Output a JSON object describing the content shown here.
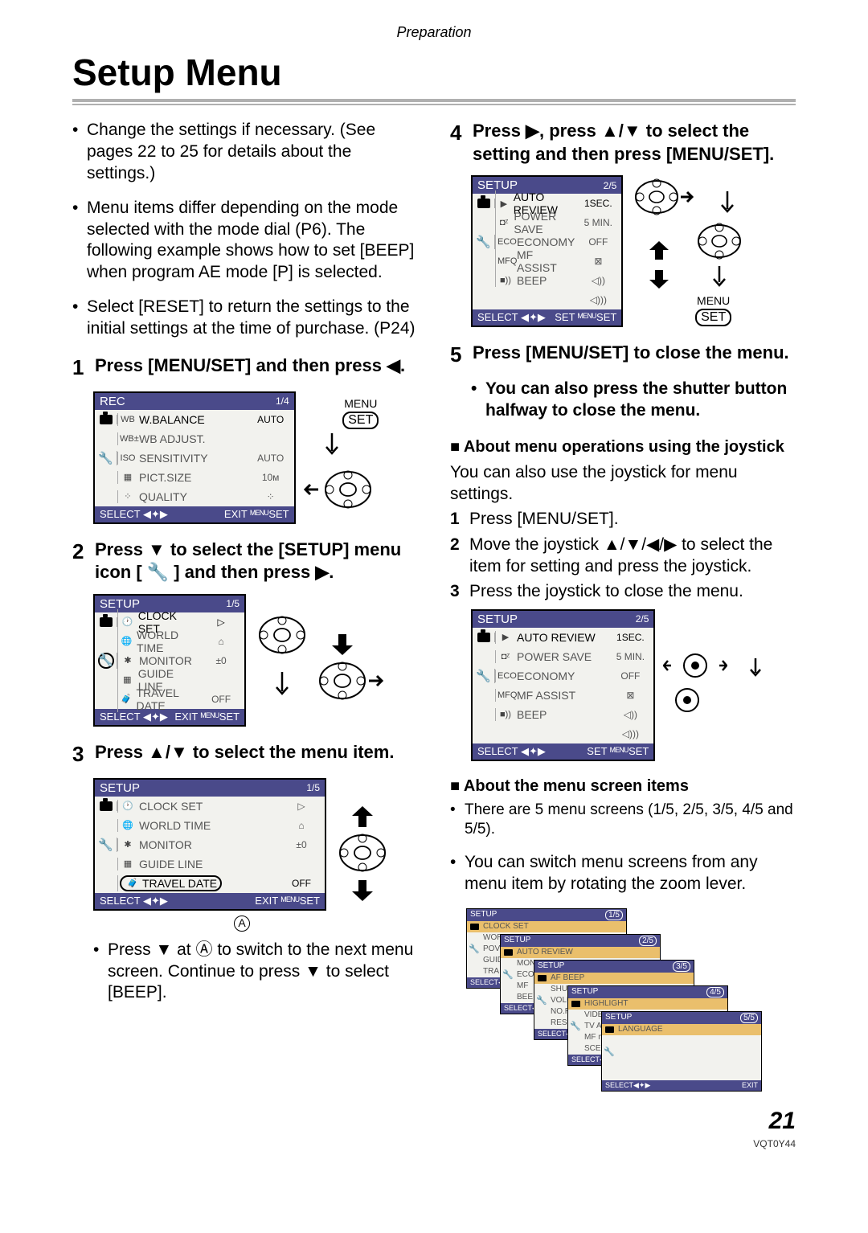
{
  "header": {
    "breadcrumb": "Preparation",
    "title": "Setup Menu"
  },
  "intro_bullets": [
    "Change the settings if necessary. (See pages 22 to 25 for details about the settings.)",
    "Menu items differ depending on the mode selected with the mode dial (P6).\nThe following example shows how to set [BEEP] when program AE mode [P] is selected.",
    "Select [RESET] to return the settings to the initial settings at the time of purchase. (P24)"
  ],
  "step1": {
    "num": "1",
    "text": "Press [MENU/SET] and then press ◀."
  },
  "step2": {
    "num": "2",
    "text": "Press ▼ to select the [SETUP] menu icon [ 🔧 ] and then press ▶."
  },
  "step3": {
    "num": "3",
    "text": "Press ▲/▼ to select the menu item."
  },
  "step3_note": "Press ▼ at Ⓐ to switch to the next menu screen. Continue to press ▼ to select [BEEP].",
  "step4": {
    "num": "4",
    "text": "Press ▶, press ▲/▼ to select the setting and then press [MENU/SET]."
  },
  "step5": {
    "num": "5",
    "text": "Press [MENU/SET] to close the menu."
  },
  "step5_sub": "You can also press the shutter button halfway to close the menu.",
  "joystick_heading": "About menu operations using the joystick",
  "joystick_intro": "You can also use the joystick for menu settings.",
  "joystick_steps": [
    "Press [MENU/SET].",
    "Move the joystick ▲/▼/◀/▶ to select the item for setting and press the joystick.",
    "Press the joystick to close the menu."
  ],
  "menuscreens_heading": "About the menu screen items",
  "menuscreens_bullets": [
    "There are 5 menu screens (1/5, 2/5, 3/5, 4/5 and 5/5).",
    "You can switch menu screens from any menu item by rotating the zoom lever."
  ],
  "menu_label": "MENU",
  "set_label": "SET",
  "screen_rec": {
    "title": "REC",
    "page": "1/4",
    "rows": [
      {
        "ico": "WB",
        "label": "W.BALANCE",
        "val": "AUTO",
        "hl": true
      },
      {
        "ico": "WB±",
        "label": "WB ADJUST.",
        "val": ""
      },
      {
        "ico": "ISO",
        "label": "SENSITIVITY",
        "val": "AUTO"
      },
      {
        "ico": "▦",
        "label": "PICT.SIZE",
        "val": "10ᴍ"
      },
      {
        "ico": "⁘",
        "label": "QUALITY",
        "val": "⁘"
      }
    ],
    "footer_l": "SELECT ◀✦▶",
    "footer_r": "EXIT ᴹᴱᴺᵁSET"
  },
  "screen_setup1": {
    "title": "SETUP",
    "page": "1/5",
    "rows": [
      {
        "ico": "🕐",
        "label": "CLOCK SET",
        "val": "▷",
        "hl": true
      },
      {
        "ico": "🌐",
        "label": "WORLD TIME",
        "val": "⌂"
      },
      {
        "ico": "✱",
        "label": "MONITOR",
        "val": "±0"
      },
      {
        "ico": "▦",
        "label": "GUIDE LINE",
        "val": ""
      },
      {
        "ico": "🧳",
        "label": "TRAVEL DATE",
        "val": "OFF"
      }
    ],
    "footer_l": "SELECT ◀✦▶",
    "footer_r": "EXIT ᴹᴱᴺᵁSET"
  },
  "screen_setup1_hl5": {
    "title": "SETUP",
    "page": "1/5",
    "rows": [
      {
        "ico": "🕐",
        "label": "CLOCK SET",
        "val": "▷"
      },
      {
        "ico": "🌐",
        "label": "WORLD TIME",
        "val": "⌂"
      },
      {
        "ico": "✱",
        "label": "MONITOR",
        "val": "±0"
      },
      {
        "ico": "▦",
        "label": "GUIDE LINE",
        "val": ""
      },
      {
        "ico": "🧳",
        "label": "TRAVEL DATE",
        "val": "OFF",
        "hl": true
      }
    ],
    "footer_l": "SELECT ◀✦▶",
    "footer_r": "EXIT ᴹᴱᴺᵁSET"
  },
  "screen_setup2": {
    "title": "SETUP",
    "page": "2/5",
    "rows": [
      {
        "ico": "▶",
        "label": "AUTO REVIEW",
        "val": "1SEC.",
        "hl": true
      },
      {
        "ico": "◘ᶻ",
        "label": "POWER SAVE",
        "val": "5 MIN."
      },
      {
        "ico": "ECO",
        "label": "ECONOMY",
        "val": "OFF"
      },
      {
        "ico": "MFQ",
        "label": "MF ASSIST",
        "val": "⊠"
      },
      {
        "ico": "■))",
        "label": "BEEP",
        "val": "◁))"
      }
    ],
    "extra_row": {
      "val": "◁)))"
    },
    "footer_l": "SELECT ◀✦▶",
    "footer_m": "SET ᴹᴱᴺᵁSET"
  },
  "cascade": [
    {
      "title": "SETUP",
      "page": "1/5",
      "rows": [
        "CLOCK SET",
        "WOR",
        "POV",
        "GUID",
        "TRA"
      ]
    },
    {
      "title": "SETUP",
      "page": "2/5",
      "rows": [
        "AUTO REVIEW",
        "MON",
        "ECO",
        "MF",
        "BEE"
      ]
    },
    {
      "title": "SETUP",
      "page": "3/5",
      "rows": [
        "AF BEEP",
        "SHUT",
        "VOLU",
        "NO.R",
        "RESE"
      ]
    },
    {
      "title": "SETUP",
      "page": "4/5",
      "rows": [
        "HIGHLIGHT",
        "VIDEO",
        "TV AS",
        "MF m",
        "SCEN"
      ]
    },
    {
      "title": "SETUP",
      "page": "5/5",
      "rows": [
        "LANGUAGE",
        "",
        "",
        "",
        ""
      ]
    }
  ],
  "page_number": "21",
  "doc_id": "VQT0Y44",
  "colors": {
    "menu_bg": "#4a4a8a",
    "hl_bg": "#eabf6c",
    "screen_bg": "#f2f2ee"
  }
}
